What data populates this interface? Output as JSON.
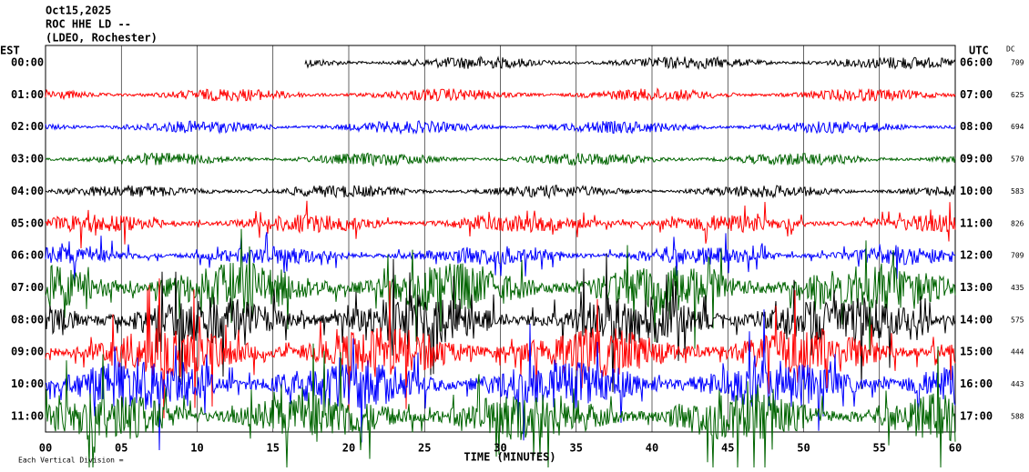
{
  "header": {
    "date": "Oct15,2025",
    "station": "ROC HHE LD --",
    "location": "(LDEO, Rochester)"
  },
  "left_axis_title": "EST",
  "right_axis_title": "UTC",
  "dc_title": "DC",
  "rows": [
    {
      "est": "00:00",
      "utc": "06:00",
      "dc": "709",
      "color": "#000000"
    },
    {
      "est": "01:00",
      "utc": "07:00",
      "dc": "625",
      "color": "#ff0000"
    },
    {
      "est": "02:00",
      "utc": "08:00",
      "dc": "694",
      "color": "#0000ff"
    },
    {
      "est": "03:00",
      "utc": "09:00",
      "dc": "570",
      "color": "#006400"
    },
    {
      "est": "04:00",
      "utc": "10:00",
      "dc": "583",
      "color": "#000000"
    },
    {
      "est": "05:00",
      "utc": "11:00",
      "dc": "826",
      "color": "#ff0000"
    },
    {
      "est": "06:00",
      "utc": "12:00",
      "dc": "709",
      "color": "#0000ff"
    },
    {
      "est": "07:00",
      "utc": "13:00",
      "dc": "435",
      "color": "#006400"
    },
    {
      "est": "08:00",
      "utc": "14:00",
      "dc": "575",
      "color": "#000000"
    },
    {
      "est": "09:00",
      "utc": "15:00",
      "dc": "444",
      "color": "#ff0000"
    },
    {
      "est": "10:00",
      "utc": "16:00",
      "dc": "443",
      "color": "#0000ff"
    },
    {
      "est": "11:00",
      "utc": "17:00",
      "dc": "588",
      "color": "#006400"
    }
  ],
  "x_ticks": [
    "00",
    "05",
    "10",
    "15",
    "20",
    "25",
    "30",
    "35",
    "40",
    "45",
    "50",
    "55",
    "60"
  ],
  "x_axis_title": "TIME (MINUTES)",
  "footer": "Each Vertical Division ="
}
